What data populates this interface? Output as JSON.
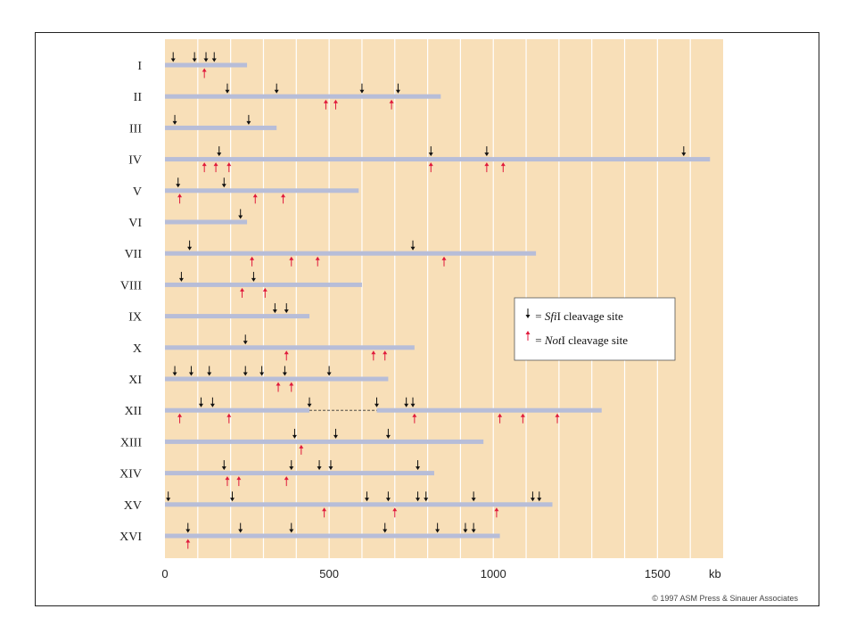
{
  "colors": {
    "background": "#f8dfb8",
    "gridline": "#ffffff",
    "chromosome": "#b7bdd8",
    "sfi_arrow": "#111111",
    "not_arrow": "#e01a3c"
  },
  "axis": {
    "unit": "kb",
    "min": 0,
    "max": 1700,
    "grid_step": 100,
    "ticks": [
      "0",
      "500",
      "1000",
      "1500"
    ]
  },
  "legend": {
    "sfi": {
      "prefix": " = ",
      "enzyme": "Sfi",
      "suffix": "I cleavage site"
    },
    "not": {
      "prefix": " = ",
      "enzyme": "Not",
      "suffix": "I cleavage site"
    }
  },
  "copyright": "© 1997 ASM Press & Sinauer Associates",
  "chromosomes": [
    {
      "label": "I",
      "length": 250,
      "sfi": [
        25,
        90,
        125,
        150
      ],
      "not": [
        120
      ]
    },
    {
      "label": "II",
      "length": 840,
      "sfi": [
        190,
        340,
        600,
        710
      ],
      "not": [
        490,
        520,
        690
      ]
    },
    {
      "label": "III",
      "length": 340,
      "sfi": [
        30,
        255
      ],
      "not": []
    },
    {
      "label": "IV",
      "length": 1660,
      "sfi": [
        165,
        810,
        980,
        1580
      ],
      "not": [
        120,
        155,
        195,
        810,
        980,
        1030
      ]
    },
    {
      "label": "V",
      "length": 590,
      "sfi": [
        40,
        180
      ],
      "not": [
        45,
        275,
        360
      ]
    },
    {
      "label": "VI",
      "length": 250,
      "sfi": [
        230
      ],
      "not": []
    },
    {
      "label": "VII",
      "length": 1130,
      "sfi": [
        75,
        755
      ],
      "not": [
        265,
        385,
        465,
        850
      ]
    },
    {
      "label": "VIII",
      "length": 600,
      "sfi": [
        50,
        270
      ],
      "not": [
        235,
        305
      ]
    },
    {
      "label": "IX",
      "length": 440,
      "sfi": [
        335,
        370
      ],
      "not": []
    },
    {
      "label": "X",
      "length": 760,
      "sfi": [
        245
      ],
      "not": [
        370,
        635,
        670
      ]
    },
    {
      "label": "XI",
      "length": 680,
      "sfi": [
        30,
        80,
        135,
        245,
        295,
        365,
        500
      ],
      "not": [
        345,
        385
      ]
    },
    {
      "label": "XII",
      "length": 1330,
      "sfi": [
        110,
        145,
        440,
        645,
        735,
        755
      ],
      "not": [
        45,
        195,
        760,
        1020,
        1090,
        1195
      ],
      "gap": [
        440,
        645
      ]
    },
    {
      "label": "XIII",
      "length": 970,
      "sfi": [
        395,
        520,
        680
      ],
      "not": [
        415
      ]
    },
    {
      "label": "XIV",
      "length": 820,
      "sfi": [
        180,
        385,
        470,
        505,
        770
      ],
      "not": [
        190,
        225,
        370
      ]
    },
    {
      "label": "XV",
      "length": 1180,
      "sfi": [
        10,
        205,
        615,
        680,
        770,
        795,
        940,
        1120,
        1140
      ],
      "not": [
        485,
        700,
        1010
      ]
    },
    {
      "label": "XVI",
      "length": 1020,
      "sfi": [
        70,
        230,
        385,
        670,
        830,
        915,
        940
      ],
      "not": [
        70
      ]
    }
  ]
}
